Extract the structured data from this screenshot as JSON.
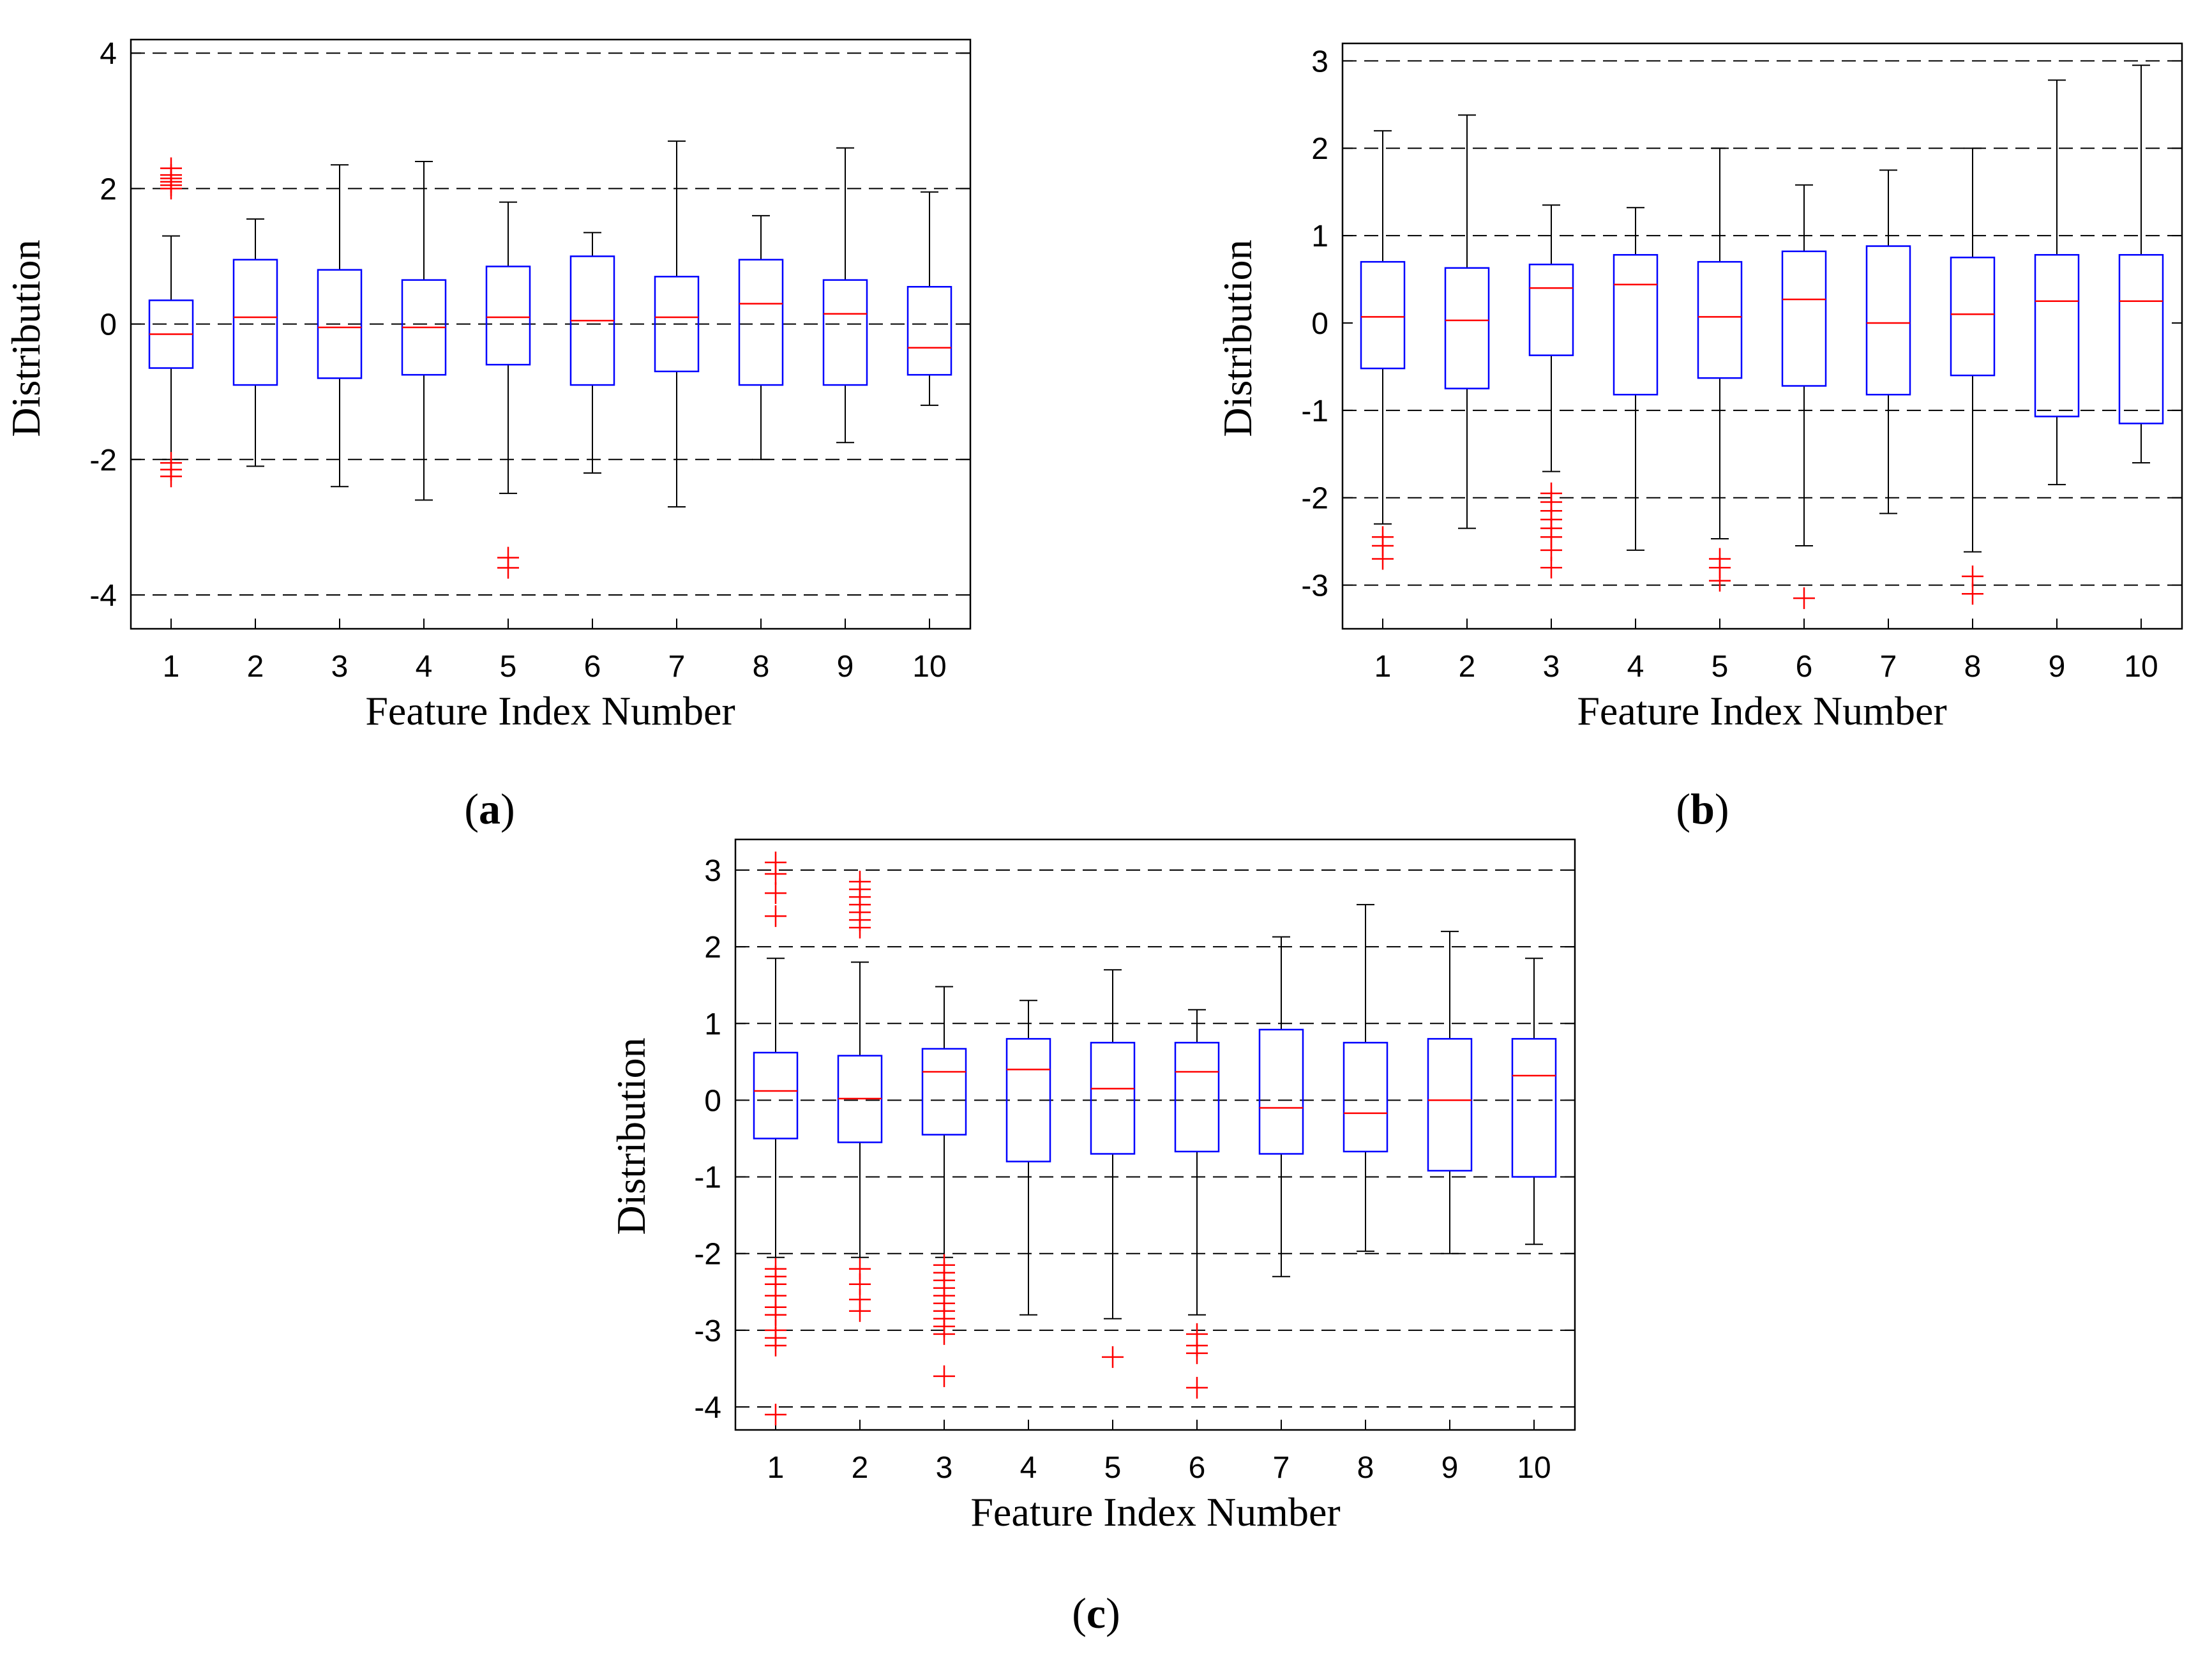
{
  "figure": {
    "colors": {
      "box": "#0000ff",
      "median": "#ff0000",
      "whisker": "#000000",
      "outlier": "#ff0000",
      "grid": "#000000",
      "frame": "#000000"
    }
  },
  "chart_data": [
    {
      "id": "a",
      "panel_label": {
        "open": "(",
        "letter": "a",
        "close": ")"
      },
      "type": "boxplot",
      "xlabel": "Feature Index Number",
      "ylabel": "Distribution",
      "ylim": [
        -4.5,
        4.2
      ],
      "yticks": [
        -4,
        -2,
        0,
        2,
        4
      ],
      "ytick_labels": [
        "-4",
        "-2",
        "0",
        "2",
        "4"
      ],
      "gridlines": [
        -4,
        -2,
        0,
        2,
        4
      ],
      "categories": [
        "1",
        "2",
        "3",
        "4",
        "5",
        "6",
        "7",
        "8",
        "9",
        "10"
      ],
      "boxes": [
        {
          "q1": -0.65,
          "median": -0.15,
          "q3": 0.35,
          "whisker_low": -2.0,
          "whisker_high": 1.3,
          "outliers": [
            2.3,
            2.2,
            2.15,
            2.1,
            2.05,
            2.0,
            -2.05,
            -2.15,
            -2.25
          ]
        },
        {
          "q1": -0.9,
          "median": 0.1,
          "q3": 0.95,
          "whisker_low": -2.1,
          "whisker_high": 1.55,
          "outliers": []
        },
        {
          "q1": -0.8,
          "median": -0.05,
          "q3": 0.8,
          "whisker_low": -2.4,
          "whisker_high": 2.35,
          "outliers": []
        },
        {
          "q1": -0.75,
          "median": -0.05,
          "q3": 0.65,
          "whisker_low": -2.6,
          "whisker_high": 2.4,
          "outliers": []
        },
        {
          "q1": -0.6,
          "median": 0.1,
          "q3": 0.85,
          "whisker_low": -2.5,
          "whisker_high": 1.8,
          "outliers": [
            -3.45,
            -3.6
          ]
        },
        {
          "q1": -0.9,
          "median": 0.05,
          "q3": 1.0,
          "whisker_low": -2.2,
          "whisker_high": 1.35,
          "outliers": []
        },
        {
          "q1": -0.7,
          "median": 0.1,
          "q3": 0.7,
          "whisker_low": -2.7,
          "whisker_high": 2.7,
          "outliers": []
        },
        {
          "q1": -0.9,
          "median": 0.3,
          "q3": 0.95,
          "whisker_low": -2.0,
          "whisker_high": 1.6,
          "outliers": []
        },
        {
          "q1": -0.9,
          "median": 0.15,
          "q3": 0.65,
          "whisker_low": -1.75,
          "whisker_high": 2.6,
          "outliers": []
        },
        {
          "q1": -0.75,
          "median": -0.35,
          "q3": 0.55,
          "whisker_low": -1.2,
          "whisker_high": 1.95,
          "outliers": []
        }
      ]
    },
    {
      "id": "b",
      "panel_label": {
        "open": "(",
        "letter": "b",
        "close": ")"
      },
      "type": "boxplot",
      "xlabel": "Feature Index Number",
      "ylabel": "Distribution",
      "ylim": [
        -3.5,
        3.2
      ],
      "yticks": [
        -3,
        -2,
        -1,
        0,
        1,
        2,
        3
      ],
      "ytick_labels": [
        "-3",
        "-2",
        "-1",
        "0",
        "1",
        "2",
        "3"
      ],
      "gridlines": [
        -3,
        -2,
        -1,
        1,
        2,
        3
      ],
      "categories": [
        "1",
        "2",
        "3",
        "4",
        "5",
        "6",
        "7",
        "8",
        "9",
        "10"
      ],
      "boxes": [
        {
          "q1": -0.52,
          "median": 0.07,
          "q3": 0.7,
          "whisker_low": -2.3,
          "whisker_high": 2.2,
          "outliers": [
            -2.45,
            -2.55,
            -2.7
          ]
        },
        {
          "q1": -0.75,
          "median": 0.03,
          "q3": 0.63,
          "whisker_low": -2.35,
          "whisker_high": 2.38,
          "outliers": []
        },
        {
          "q1": -0.37,
          "median": 0.4,
          "q3": 0.67,
          "whisker_low": -1.7,
          "whisker_high": 1.35,
          "outliers": [
            -1.95,
            -2.05,
            -2.15,
            -2.25,
            -2.35,
            -2.45,
            -2.6,
            -2.8
          ]
        },
        {
          "q1": -0.82,
          "median": 0.44,
          "q3": 0.78,
          "whisker_low": -2.6,
          "whisker_high": 1.32,
          "outliers": []
        },
        {
          "q1": -0.63,
          "median": 0.07,
          "q3": 0.7,
          "whisker_low": -2.47,
          "whisker_high": 2.0,
          "outliers": [
            -2.7,
            -2.8,
            -2.95
          ]
        },
        {
          "q1": -0.72,
          "median": 0.27,
          "q3": 0.82,
          "whisker_low": -2.55,
          "whisker_high": 1.58,
          "outliers": [
            -3.15
          ]
        },
        {
          "q1": -0.82,
          "median": 0.0,
          "q3": 0.88,
          "whisker_low": -2.18,
          "whisker_high": 1.75,
          "outliers": []
        },
        {
          "q1": -0.6,
          "median": 0.1,
          "q3": 0.75,
          "whisker_low": -2.62,
          "whisker_high": 2.0,
          "outliers": [
            -2.9,
            -3.1
          ]
        },
        {
          "q1": -1.07,
          "median": 0.25,
          "q3": 0.78,
          "whisker_low": -1.85,
          "whisker_high": 2.78,
          "outliers": []
        },
        {
          "q1": -1.15,
          "median": 0.25,
          "q3": 0.78,
          "whisker_low": -1.6,
          "whisker_high": 2.95,
          "outliers": []
        }
      ]
    },
    {
      "id": "c",
      "panel_label": {
        "open": "(",
        "letter": "c",
        "close": ")"
      },
      "type": "boxplot",
      "xlabel": "Feature Index Number",
      "ylabel": "Distribution",
      "ylim": [
        -4.3,
        3.4
      ],
      "yticks": [
        -4,
        -3,
        -2,
        -1,
        0,
        1,
        2,
        3
      ],
      "ytick_labels": [
        "-4",
        "-3",
        "-2",
        "-1",
        "0",
        "1",
        "2",
        "3"
      ],
      "gridlines": [
        -4,
        -3,
        -2,
        -1,
        0,
        1,
        2,
        3
      ],
      "categories": [
        "1",
        "2",
        "3",
        "4",
        "5",
        "6",
        "7",
        "8",
        "9",
        "10"
      ],
      "boxes": [
        {
          "q1": -0.5,
          "median": 0.12,
          "q3": 0.62,
          "whisker_low": -2.05,
          "whisker_high": 1.85,
          "outliers": [
            3.1,
            2.95,
            2.7,
            2.4,
            -2.2,
            -2.3,
            -2.4,
            -2.55,
            -2.7,
            -2.8,
            -3.0,
            -3.1,
            -3.2,
            -4.1
          ]
        },
        {
          "q1": -0.55,
          "median": 0.02,
          "q3": 0.58,
          "whisker_low": -2.05,
          "whisker_high": 1.8,
          "outliers": [
            2.85,
            2.75,
            2.65,
            2.55,
            2.45,
            2.35,
            2.25,
            -2.2,
            -2.4,
            -2.6,
            -2.75
          ]
        },
        {
          "q1": -0.45,
          "median": 0.37,
          "q3": 0.67,
          "whisker_low": -2.05,
          "whisker_high": 1.48,
          "outliers": [
            -2.15,
            -2.25,
            -2.35,
            -2.45,
            -2.55,
            -2.65,
            -2.75,
            -2.85,
            -2.95,
            -3.05,
            -3.6
          ]
        },
        {
          "q1": -0.8,
          "median": 0.4,
          "q3": 0.8,
          "whisker_low": -2.8,
          "whisker_high": 1.3,
          "outliers": []
        },
        {
          "q1": -0.7,
          "median": 0.15,
          "q3": 0.75,
          "whisker_low": -2.85,
          "whisker_high": 1.7,
          "outliers": [
            -3.35
          ]
        },
        {
          "q1": -0.67,
          "median": 0.37,
          "q3": 0.75,
          "whisker_low": -2.8,
          "whisker_high": 1.18,
          "outliers": [
            -3.05,
            -3.2,
            -3.3,
            -3.75
          ]
        },
        {
          "q1": -0.7,
          "median": -0.1,
          "q3": 0.92,
          "whisker_low": -2.3,
          "whisker_high": 2.13,
          "outliers": []
        },
        {
          "q1": -0.67,
          "median": -0.17,
          "q3": 0.75,
          "whisker_low": -1.97,
          "whisker_high": 2.55,
          "outliers": []
        },
        {
          "q1": -0.92,
          "median": 0.0,
          "q3": 0.8,
          "whisker_low": -2.0,
          "whisker_high": 2.2,
          "outliers": []
        },
        {
          "q1": -1.0,
          "median": 0.32,
          "q3": 0.8,
          "whisker_low": -1.88,
          "whisker_high": 1.85,
          "outliers": []
        }
      ]
    }
  ]
}
